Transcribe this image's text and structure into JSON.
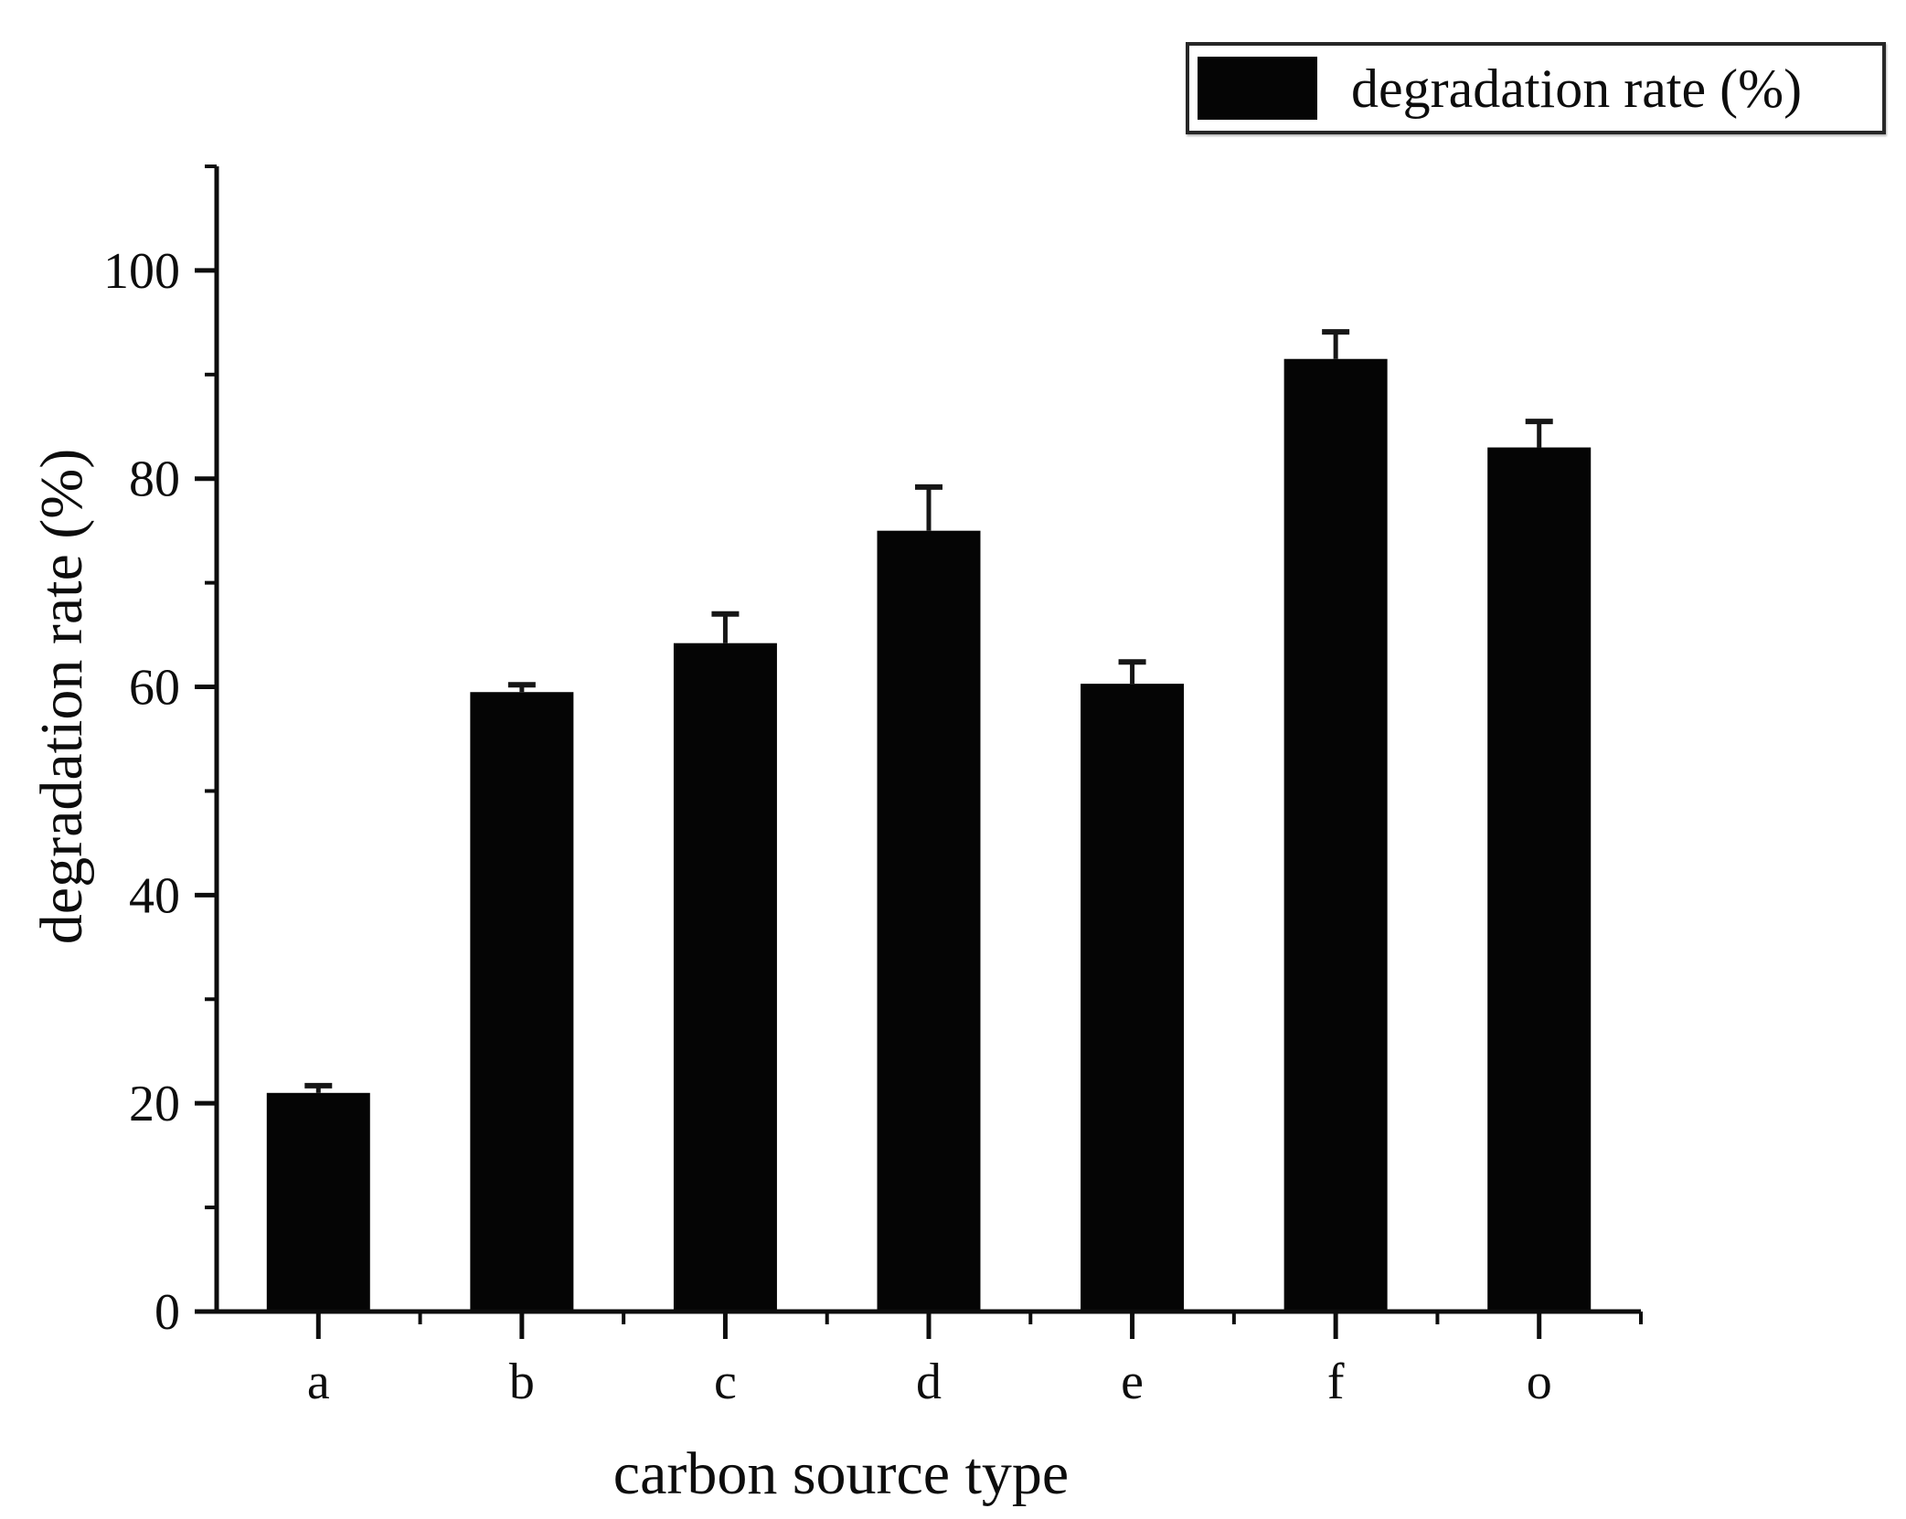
{
  "chart_data": {
    "type": "bar",
    "title": "",
    "xlabel": "carbon source type",
    "ylabel": "degradation rate (%)",
    "categories": [
      "a",
      "b",
      "c",
      "d",
      "e",
      "f",
      "o"
    ],
    "series": [
      {
        "name": "degradation rate (%)",
        "values": [
          21.0,
          59.5,
          64.2,
          75.0,
          60.3,
          91.5,
          83.0
        ],
        "errors_plus": [
          0.7,
          0.7,
          2.8,
          4.2,
          2.1,
          2.6,
          2.5
        ]
      }
    ],
    "ylim": [
      0,
      110
    ],
    "yticks": [
      0,
      20,
      40,
      60,
      80,
      100
    ],
    "ytick_labels": [
      "0",
      "20",
      "40",
      "60",
      "80",
      "100"
    ],
    "minor_tick_step": 10,
    "grid": false,
    "legend_position": "top-right",
    "bar_color": "#050505",
    "error_bar_color": "#161616",
    "axis_color": "#0d0d0d",
    "text_color": "#0d0d0d"
  },
  "legend": {
    "label": "degradation rate (%)",
    "swatch_color": "#050505"
  }
}
